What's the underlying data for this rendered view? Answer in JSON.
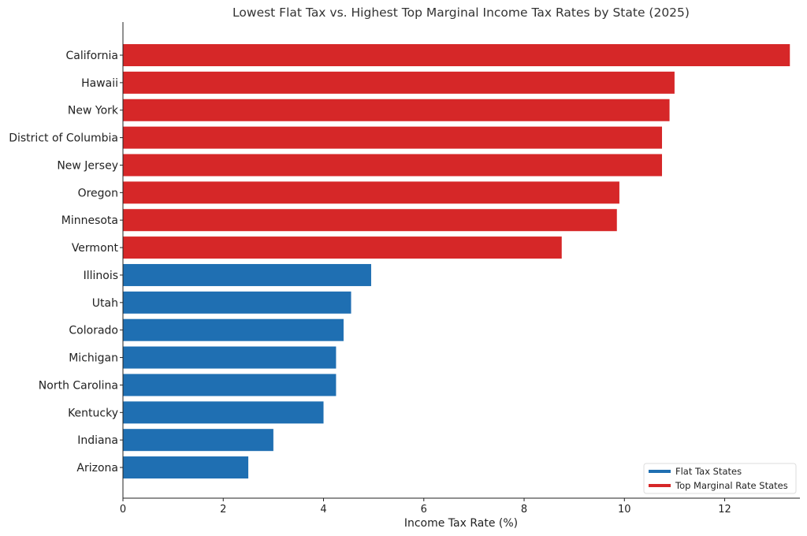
{
  "chart_data": {
    "type": "bar",
    "orientation": "horizontal",
    "title": "Lowest Flat Tax vs. Highest Top Marginal Income Tax Rates by State (2025)",
    "xlabel": "Income Tax Rate (%)",
    "ylabel": "",
    "xlim": [
      0,
      13.5
    ],
    "xticks": [
      0,
      2,
      4,
      6,
      8,
      10,
      12
    ],
    "grid": false,
    "legend_position": "lower-right",
    "categories": [
      "California",
      "Hawaii",
      "New York",
      "District of Columbia",
      "New Jersey",
      "Oregon",
      "Minnesota",
      "Vermont",
      "Illinois",
      "Utah",
      "Colorado",
      "Michigan",
      "North Carolina",
      "Kentucky",
      "Indiana",
      "Arizona"
    ],
    "values": [
      13.3,
      11.0,
      10.9,
      10.75,
      10.75,
      9.9,
      9.85,
      8.75,
      4.95,
      4.55,
      4.4,
      4.25,
      4.25,
      4.0,
      3.0,
      2.5
    ],
    "bar_series": [
      "Top Marginal Rate States",
      "Top Marginal Rate States",
      "Top Marginal Rate States",
      "Top Marginal Rate States",
      "Top Marginal Rate States",
      "Top Marginal Rate States",
      "Top Marginal Rate States",
      "Top Marginal Rate States",
      "Flat Tax States",
      "Flat Tax States",
      "Flat Tax States",
      "Flat Tax States",
      "Flat Tax States",
      "Flat Tax States",
      "Flat Tax States",
      "Flat Tax States"
    ],
    "series": [
      {
        "name": "Flat Tax States",
        "color": "#1f6fb2"
      },
      {
        "name": "Top Marginal Rate States",
        "color": "#d62728"
      }
    ],
    "legend": [
      {
        "label": "Flat Tax States",
        "color": "#1f6fb2"
      },
      {
        "label": "Top Marginal Rate States",
        "color": "#d62728"
      }
    ]
  }
}
